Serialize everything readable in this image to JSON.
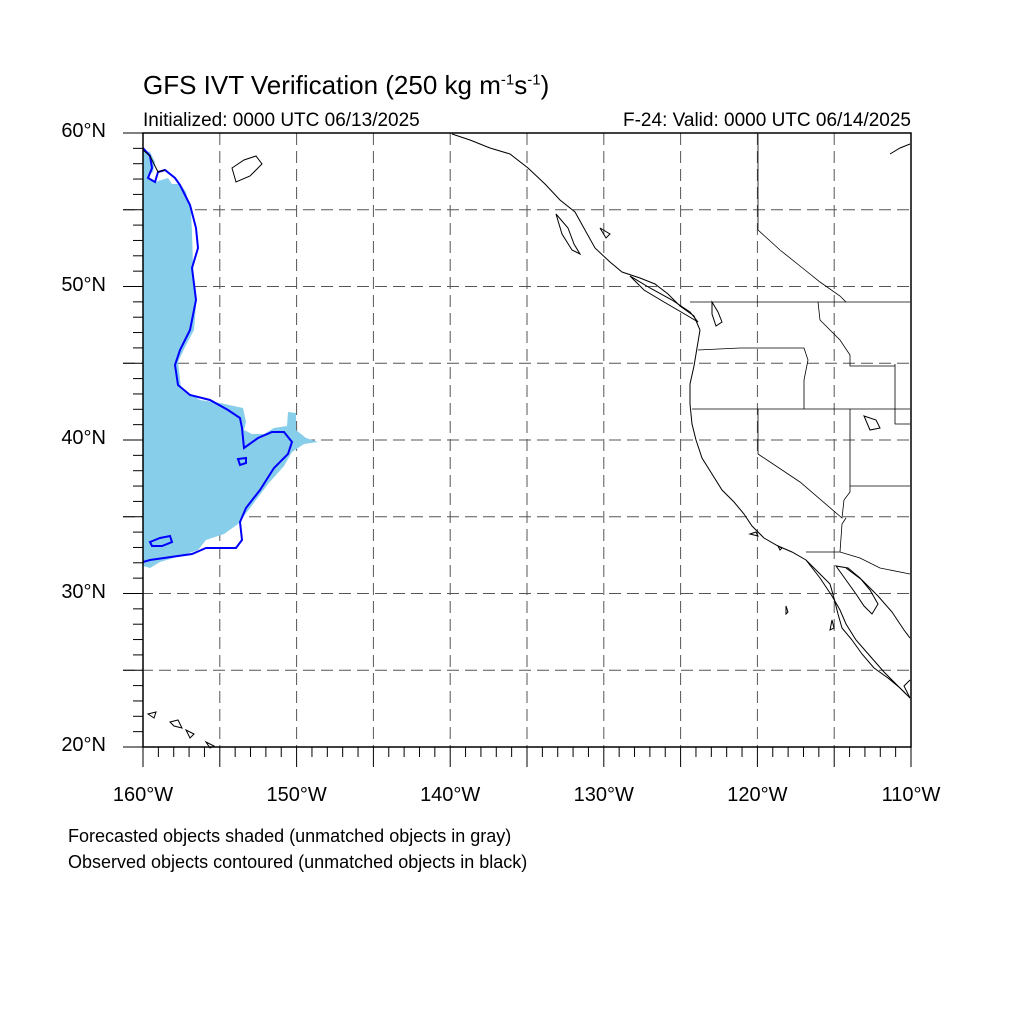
{
  "header": {
    "title_main": "GFS IVT Verification (250 kg m",
    "title_sup1": "-1",
    "title_mid": "s",
    "title_sup2": "-1",
    "title_end": ")",
    "initialized": "Initialized: 0000 UTC 06/13/2025",
    "valid": "F-24: Valid: 0000 UTC 06/14/2025"
  },
  "map": {
    "projection": "cylindrical-equidistant",
    "lon_range": [
      -160,
      -110
    ],
    "lat_range": [
      20,
      60
    ],
    "grid_interval_deg": 5,
    "gridlines": "dashed",
    "lat_labels": [
      "20°N",
      "30°N",
      "40°N",
      "50°N",
      "60°N"
    ],
    "lon_labels": [
      "160°W",
      "150°W",
      "140°W",
      "130°W",
      "120°W",
      "110°W"
    ],
    "forecast_fill_color": "#87ceeb",
    "observed_contour_color": "#0000ff"
  },
  "legend": {
    "line1": "Forecasted objects shaded (unmatched objects in gray)",
    "line2": "Observed objects contoured (unmatched objects in black)"
  }
}
